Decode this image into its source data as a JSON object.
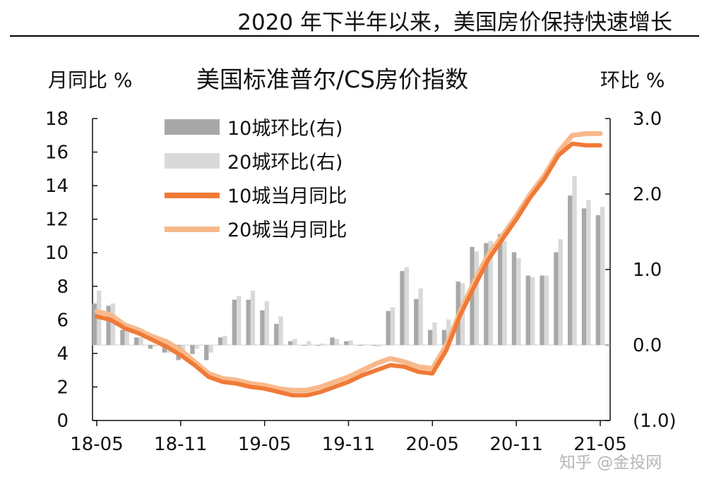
{
  "header": {
    "title": "2020 年下半年以来，美国房价保持快速增长"
  },
  "watermark": "知乎 @金投网",
  "chart_data": {
    "type": "bar+line",
    "title": "美国标准普尔/CS房价指数",
    "y_left_label": "月同比 %",
    "y_right_label": "环比 %",
    "ylim_left": [
      0,
      18
    ],
    "ylim_right": [
      -1.0,
      3.0
    ],
    "y_left_ticks": [
      "0",
      "2",
      "4",
      "6",
      "8",
      "10",
      "12",
      "14",
      "16",
      "18"
    ],
    "y_right_ticks": [
      "(1.0)",
      "0.0",
      "1.0",
      "2.0",
      "3.0"
    ],
    "x_tick_labels": [
      "18-05",
      "18-11",
      "19-05",
      "19-11",
      "20-05",
      "20-11",
      "21-05"
    ],
    "colors": {
      "bar10": "#a8a8a8",
      "bar20": "#d9d9d9",
      "line10": "#f07a37",
      "line20": "#f8b98b",
      "negative_tick": "#c00000"
    },
    "legend": [
      {
        "label": "10城环比(右)",
        "kind": "bar",
        "color_key": "bar10"
      },
      {
        "label": "20城环比(右)",
        "kind": "bar",
        "color_key": "bar20"
      },
      {
        "label": "10城当月同比",
        "kind": "line",
        "color_key": "line10"
      },
      {
        "label": "20城当月同比",
        "kind": "line",
        "color_key": "line20"
      }
    ],
    "months": [
      "18-05",
      "18-06",
      "18-07",
      "18-08",
      "18-09",
      "18-10",
      "18-11",
      "18-12",
      "19-01",
      "19-02",
      "19-03",
      "19-04",
      "19-05",
      "19-06",
      "19-07",
      "19-08",
      "19-09",
      "19-10",
      "19-11",
      "19-12",
      "20-01",
      "20-02",
      "20-03",
      "20-04",
      "20-05",
      "20-06",
      "20-07",
      "20-08",
      "20-09",
      "20-10",
      "20-11",
      "20-12",
      "21-01",
      "21-02",
      "21-03",
      "21-04",
      "21-05"
    ],
    "series": [
      {
        "name": "10城环比(右)",
        "axis": "right",
        "kind": "bar",
        "values": [
          0.55,
          0.52,
          0.2,
          0.1,
          -0.05,
          -0.1,
          -0.2,
          -0.12,
          -0.2,
          0.1,
          0.6,
          0.6,
          0.46,
          0.28,
          0.05,
          0.0,
          0.0,
          0.1,
          0.05,
          0.0,
          0.0,
          0.45,
          0.98,
          0.61,
          0.2,
          0.2,
          0.84,
          1.3,
          1.35,
          1.47,
          1.23,
          0.92,
          0.92,
          1.23,
          1.98,
          1.81,
          1.72
        ]
      },
      {
        "name": "20城环比(右)",
        "axis": "right",
        "kind": "bar",
        "values": [
          0.72,
          0.55,
          0.22,
          0.1,
          -0.02,
          -0.1,
          -0.12,
          -0.05,
          -0.1,
          0.12,
          0.65,
          0.72,
          0.58,
          0.38,
          0.08,
          0.05,
          0.02,
          0.08,
          0.06,
          0.01,
          -0.02,
          0.5,
          1.03,
          0.75,
          0.3,
          0.34,
          0.82,
          1.24,
          1.38,
          1.38,
          1.15,
          0.9,
          0.92,
          1.4,
          2.24,
          1.92,
          1.83
        ]
      },
      {
        "name": "10城当月同比",
        "axis": "left",
        "kind": "line",
        "values": [
          6.2,
          6.0,
          5.5,
          5.2,
          4.8,
          4.4,
          3.9,
          3.3,
          2.6,
          2.3,
          2.2,
          2.0,
          1.9,
          1.7,
          1.5,
          1.5,
          1.7,
          2.0,
          2.3,
          2.7,
          3.0,
          3.3,
          3.2,
          2.9,
          2.8,
          4.2,
          6.3,
          8.0,
          9.6,
          10.8,
          12.0,
          13.3,
          14.4,
          15.8,
          16.5,
          16.4,
          16.4
        ]
      },
      {
        "name": "20城当月同比",
        "axis": "left",
        "kind": "line",
        "values": [
          6.5,
          6.3,
          5.7,
          5.4,
          5.0,
          4.7,
          4.2,
          3.5,
          2.8,
          2.5,
          2.4,
          2.2,
          2.1,
          1.9,
          1.8,
          1.8,
          2.0,
          2.3,
          2.6,
          3.0,
          3.4,
          3.7,
          3.5,
          3.2,
          3.1,
          4.5,
          6.5,
          8.3,
          9.9,
          11.0,
          12.2,
          13.5,
          14.6,
          16.0,
          17.0,
          17.1,
          17.1
        ]
      }
    ]
  }
}
